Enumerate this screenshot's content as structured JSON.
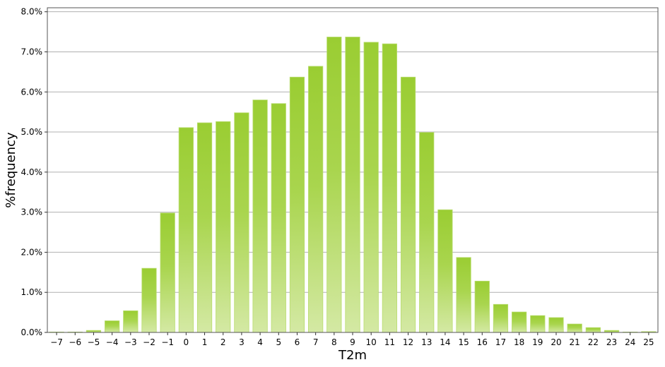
{
  "chart_data": {
    "type": "bar",
    "xlabel": "T2m",
    "ylabel": "%frequency",
    "categories": [
      "−7",
      "−6",
      "−5",
      "−4",
      "−3",
      "−2",
      "−1",
      "0",
      "1",
      "2",
      "3",
      "4",
      "5",
      "6",
      "7",
      "8",
      "9",
      "10",
      "11",
      "12",
      "13",
      "14",
      "15",
      "16",
      "17",
      "18",
      "19",
      "20",
      "21",
      "22",
      "23",
      "24",
      "25"
    ],
    "values": [
      0.01,
      0.01,
      0.05,
      0.29,
      0.54,
      1.6,
      2.98,
      5.11,
      5.23,
      5.26,
      5.48,
      5.8,
      5.71,
      6.37,
      6.64,
      7.37,
      7.37,
      7.24,
      7.2,
      6.37,
      4.99,
      3.06,
      1.87,
      1.28,
      0.7,
      0.51,
      0.42,
      0.37,
      0.21,
      0.12,
      0.05,
      0.01,
      0.02
    ],
    "ylim": [
      0,
      8.1
    ],
    "yticks": [
      "0.0%",
      "1.0%",
      "2.0%",
      "3.0%",
      "4.0%",
      "5.0%",
      "6.0%",
      "7.0%",
      "8.0%"
    ],
    "ytick_values": [
      0,
      1,
      2,
      3,
      4,
      5,
      6,
      7,
      8
    ],
    "grid": "horizontal",
    "colors": {
      "bar_top": "#9acd32",
      "bar_bottom": "#d4e9a4",
      "grid": "#b0b0b0"
    }
  }
}
